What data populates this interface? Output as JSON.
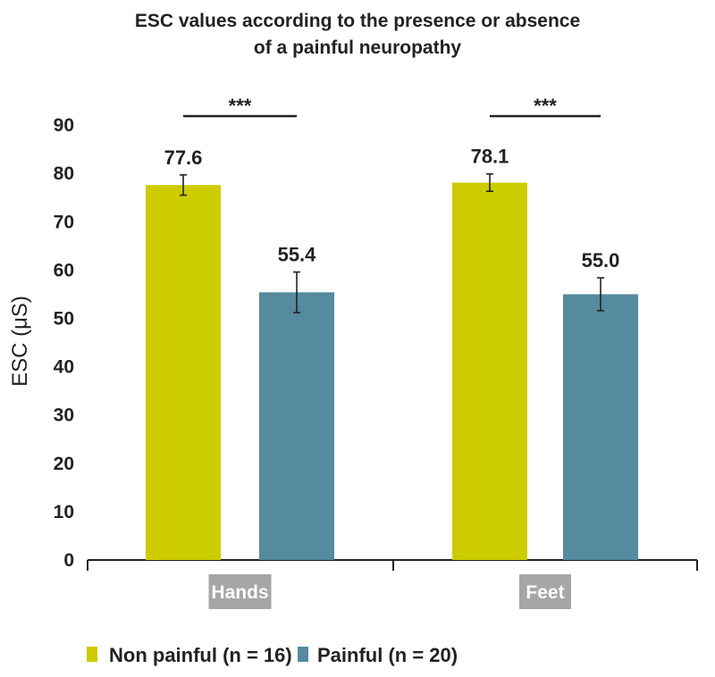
{
  "chart_data": {
    "type": "bar",
    "title": "ESC values according to the presence or absence of a painful neuropathy",
    "title_lines": [
      "ESC values according to the presence or absence",
      "of a painful neuropathy"
    ],
    "ylabel": "ESC (μS)",
    "xlabel": "",
    "ylim": [
      0,
      90
    ],
    "yticks": [
      0,
      10,
      20,
      30,
      40,
      50,
      60,
      70,
      80,
      90
    ],
    "grid": false,
    "categories": [
      "Hands",
      "Feet"
    ],
    "series": [
      {
        "name": "Non painful (n = 16)",
        "color": "#cccc00",
        "values": [
          77.6,
          78.1
        ],
        "labels": [
          "77.6",
          "78.1"
        ],
        "errors": [
          2.1,
          1.8
        ]
      },
      {
        "name": "Painful (n = 20)",
        "color": "#568a9e",
        "values": [
          55.4,
          55.0
        ],
        "labels": [
          "55.4",
          "55.0"
        ],
        "errors": [
          4.2,
          3.4
        ]
      }
    ],
    "significance": [
      {
        "category": "Hands",
        "label": "***"
      },
      {
        "category": "Feet",
        "label": "***"
      }
    ],
    "legend_position": "bottom",
    "category_label_bg": "#a6a6a8"
  }
}
